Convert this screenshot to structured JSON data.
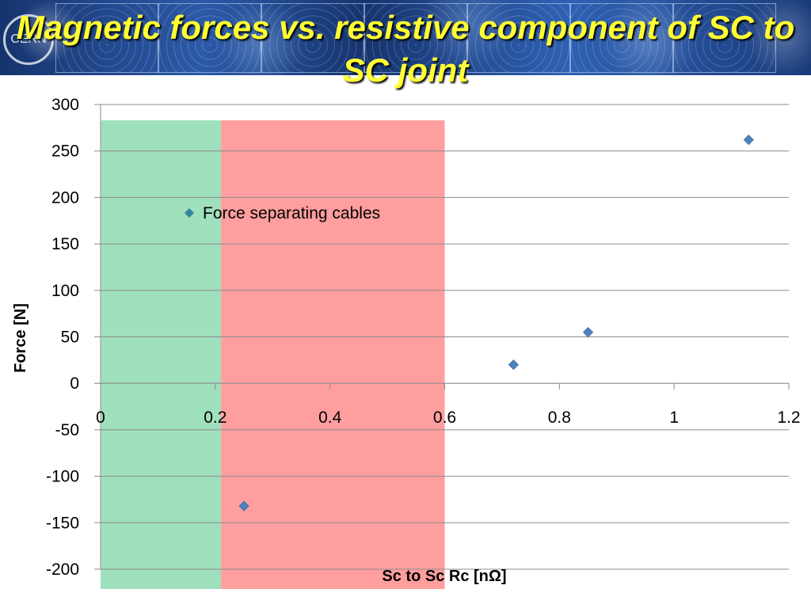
{
  "slide": {
    "title": "Magnetic forces vs. resistive component of SC to SC joint",
    "logo_text": "CERN"
  },
  "colors": {
    "title_text": "#ffff33",
    "green_band": "#9fe0bd",
    "red_band": "#ff9e9e",
    "marker": "#4f81bd",
    "legend_marker": "#31859c",
    "gridline": "#8c8c8c"
  },
  "chart_data": {
    "type": "scatter",
    "title": "",
    "xlabel": "Sc to Sc Rc [nΩ]",
    "ylabel": "Force [N]",
    "xlim": [
      0,
      1.2
    ],
    "ylim": [
      -200,
      300
    ],
    "x_ticks": [
      "0",
      "0.2",
      "0.4",
      "0.6",
      "0.8",
      "1",
      "1.2"
    ],
    "y_ticks": [
      "300",
      "250",
      "200",
      "150",
      "100",
      "50",
      "0",
      "-50",
      "-100",
      "-150",
      "-200"
    ],
    "grid": true,
    "legend_position": "inside-top-left",
    "series": [
      {
        "name": "Force separating cables",
        "marker": "diamond",
        "points": [
          {
            "x": 0.25,
            "y": -132
          },
          {
            "x": 0.72,
            "y": 20
          },
          {
            "x": 0.85,
            "y": 55
          },
          {
            "x": 1.13,
            "y": 262
          }
        ]
      }
    ],
    "shaded_regions": [
      {
        "x_range": [
          0,
          0.21
        ],
        "color": "green"
      },
      {
        "x_range": [
          0.21,
          0.6
        ],
        "color": "red"
      }
    ]
  }
}
